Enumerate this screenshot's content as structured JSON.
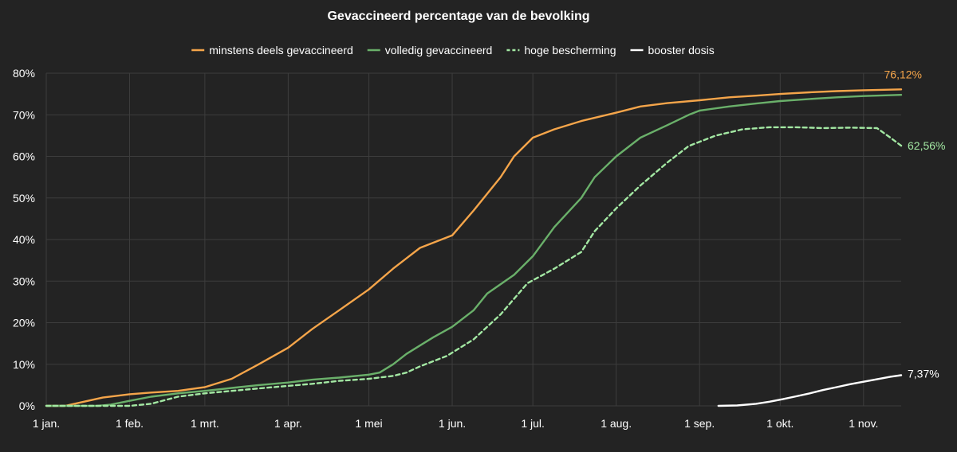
{
  "chart_data": {
    "type": "line",
    "title": "Gevaccineerd percentage van de bevolking",
    "xlabel": "",
    "ylabel": "",
    "ylim": [
      0,
      80
    ],
    "y_ticks": [
      0,
      10,
      20,
      30,
      40,
      50,
      60,
      70,
      80
    ],
    "y_tick_labels": [
      "0%",
      "10%",
      "20%",
      "30%",
      "40%",
      "50%",
      "60%",
      "70%",
      "80%"
    ],
    "x_unit": "day of year 2021",
    "xlim": [
      1,
      319
    ],
    "x_ticks": [
      1,
      32,
      60,
      91,
      121,
      152,
      182,
      213,
      244,
      274,
      305
    ],
    "x_tick_labels": [
      "1 jan.",
      "1 feb.",
      "1 mrt.",
      "1 apr.",
      "1 mei",
      "1 jun.",
      "1 jul.",
      "1 aug.",
      "1 sep.",
      "1 okt.",
      "1 nov."
    ],
    "grid": true,
    "legend_position": "top-center",
    "series": [
      {
        "name": "minstens deels gevaccineerd",
        "color": "#f5a54a",
        "style": "solid",
        "end_label": "76,12%",
        "x": [
          1,
          8,
          15,
          22,
          32,
          40,
          50,
          60,
          70,
          80,
          91,
          100,
          110,
          121,
          130,
          140,
          152,
          160,
          170,
          175,
          182,
          190,
          200,
          213,
          222,
          232,
          244,
          255,
          265,
          274,
          285,
          295,
          305,
          319
        ],
        "values": [
          0,
          0,
          1,
          2,
          2.8,
          3.2,
          3.6,
          4.5,
          6.5,
          10,
          14,
          18.5,
          23,
          28,
          33,
          38,
          41,
          47,
          55,
          60,
          64.5,
          66.5,
          68.5,
          70.5,
          72,
          72.8,
          73.5,
          74.2,
          74.6,
          75,
          75.4,
          75.7,
          75.9,
          76.12
        ]
      },
      {
        "name": "volledig gevaccineerd",
        "color": "#6ab06a",
        "style": "solid",
        "end_label": "",
        "x": [
          1,
          20,
          25,
          32,
          40,
          50,
          60,
          70,
          80,
          91,
          100,
          110,
          121,
          125,
          130,
          135,
          140,
          145,
          152,
          160,
          165,
          175,
          182,
          190,
          200,
          205,
          213,
          222,
          232,
          240,
          244,
          255,
          265,
          274,
          285,
          295,
          305,
          319
        ],
        "values": [
          0,
          0,
          0.3,
          1.2,
          2.2,
          3,
          3.6,
          4.3,
          5,
          5.6,
          6.3,
          6.8,
          7.5,
          8,
          10,
          12.5,
          14.5,
          16.5,
          19,
          23,
          27,
          31.5,
          36,
          43,
          50,
          55,
          60,
          64.5,
          67.5,
          70,
          71,
          72,
          72.7,
          73.3,
          73.8,
          74.2,
          74.5,
          74.8
        ]
      },
      {
        "name": "hoge bescherming",
        "color": "#a3e8a3",
        "style": "dashed",
        "end_label": "62,56%",
        "x": [
          1,
          32,
          40,
          50,
          60,
          70,
          80,
          91,
          100,
          110,
          121,
          130,
          135,
          140,
          150,
          160,
          170,
          180,
          190,
          200,
          205,
          213,
          222,
          232,
          240,
          250,
          260,
          270,
          280,
          290,
          300,
          310,
          315,
          319
        ],
        "values": [
          0,
          0,
          0.5,
          2.2,
          3,
          3.6,
          4.2,
          4.8,
          5.3,
          6,
          6.5,
          7.2,
          8,
          9.5,
          12,
          16,
          22,
          29.5,
          33,
          37,
          42,
          47.5,
          53,
          58.5,
          62.5,
          65,
          66.5,
          67,
          67,
          66.8,
          66.9,
          66.8,
          64.5,
          62.56
        ]
      },
      {
        "name": "booster dosis",
        "color": "#ffffff",
        "style": "solid",
        "end_label": "7,37%",
        "x": [
          251,
          258,
          265,
          270,
          275,
          280,
          285,
          290,
          295,
          300,
          305,
          310,
          315,
          319
        ],
        "values": [
          0,
          0.1,
          0.5,
          1,
          1.6,
          2.3,
          3,
          3.8,
          4.5,
          5.2,
          5.8,
          6.4,
          7,
          7.37
        ]
      }
    ]
  }
}
